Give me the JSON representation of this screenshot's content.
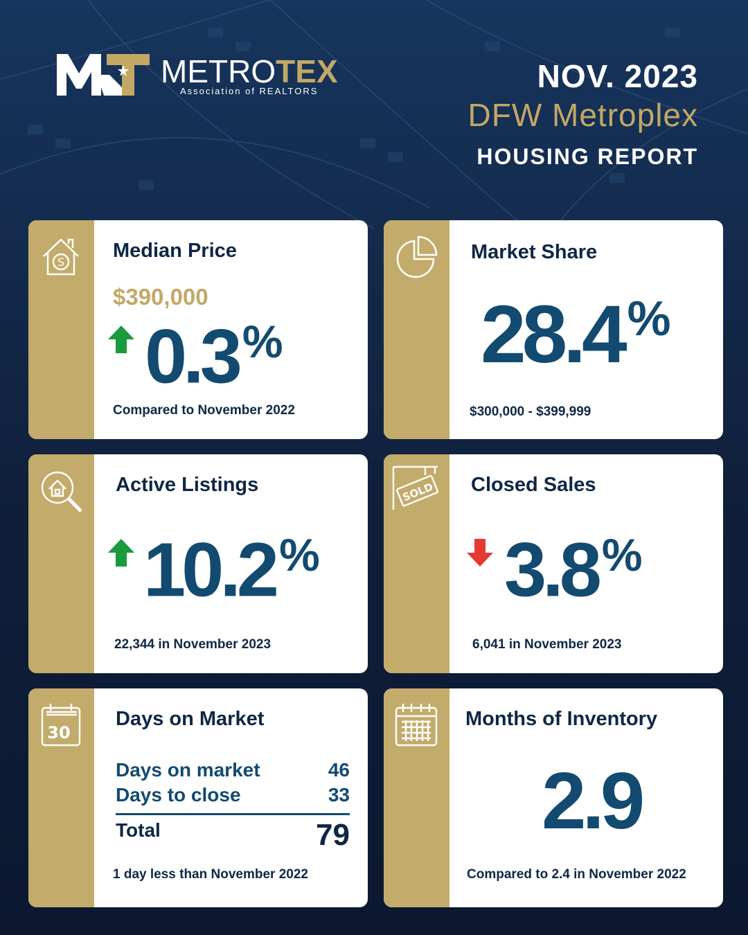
{
  "brand": {
    "name_part1": "METRO",
    "name_part2": "TEX",
    "tagline": "Association of REALTORS",
    "mark": "MT"
  },
  "header": {
    "date": "NOV. 2023",
    "region": "DFW Metroplex",
    "report": "HOUSING REPORT"
  },
  "colors": {
    "navy": "#0f2745",
    "blue": "#134a70",
    "gold": "#c3a865",
    "green": "#1a9a3e",
    "red": "#e53935"
  },
  "cards": {
    "median_price": {
      "icon": "house-dollar-icon",
      "title": "Median Price",
      "price": "$390,000",
      "trend": "up",
      "change": "0.3",
      "unit": "%",
      "note": "Compared to November 2022"
    },
    "market_share": {
      "icon": "pie-chart-icon",
      "title": "Market Share",
      "value": "28.4",
      "unit": "%",
      "note": "$300,000 - $399,999"
    },
    "active_listings": {
      "icon": "house-search-icon",
      "title": "Active Listings",
      "trend": "up",
      "change": "10.2",
      "unit": "%",
      "note": "22,344 in November 2023"
    },
    "closed_sales": {
      "icon": "sold-sign-icon",
      "icon_text": "SOLD",
      "title": "Closed Sales",
      "trend": "down",
      "change": "3.8",
      "unit": "%",
      "note": "6,041 in November 2023"
    },
    "days_on_market": {
      "icon": "calendar-30-icon",
      "icon_text": "30",
      "title": "Days on Market",
      "rows": [
        {
          "label": "Days on market",
          "value": "46"
        },
        {
          "label": "Days to close",
          "value": "33"
        }
      ],
      "total_label": "Total",
      "total_value": "79",
      "note": "1 day less than November 2022"
    },
    "months_inventory": {
      "icon": "calendar-grid-icon",
      "title": "Months of Inventory",
      "value": "2.9",
      "note": "Compared to 2.4 in November 2022"
    }
  }
}
